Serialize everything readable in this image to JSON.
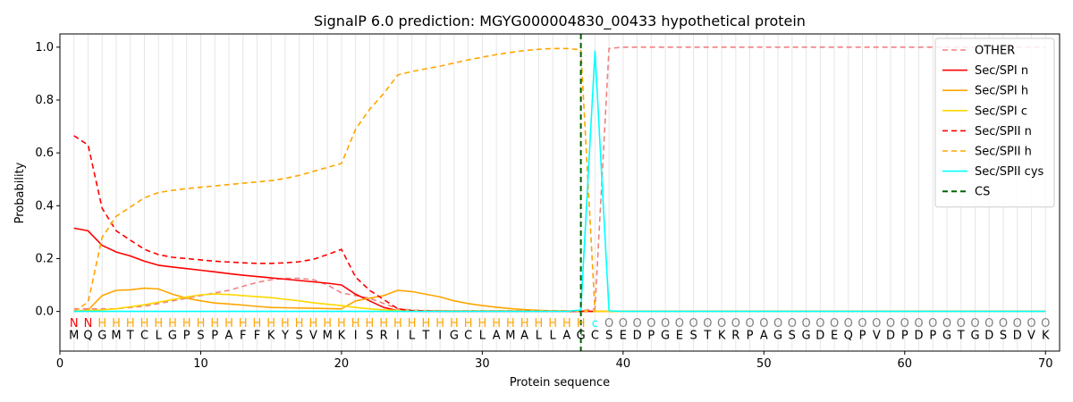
{
  "chart_data": {
    "type": "line",
    "title": "SignalP 6.0 prediction: MGYG000004830_00433 hypothetical protein",
    "xlabel": "Protein sequence",
    "ylabel": "Probability",
    "xlim": [
      0,
      71
    ],
    "ylim": [
      -0.15,
      1.05
    ],
    "x_ticks": [
      0,
      10,
      20,
      30,
      40,
      50,
      60,
      70
    ],
    "y_ticks": [
      0.0,
      0.2,
      0.4,
      0.6,
      0.8,
      1.0
    ],
    "x_tick_labels": [
      "0",
      "10",
      "20",
      "30",
      "40",
      "50",
      "60",
      "70"
    ],
    "y_tick_labels": [
      "0.0",
      "0.2",
      "0.4",
      "0.6",
      "0.8",
      "1.0"
    ],
    "grid": "vertical lines at each residue",
    "legend_position": "top-right",
    "sequence": [
      "M",
      "Q",
      "G",
      "M",
      "T",
      "C",
      "L",
      "G",
      "P",
      "S",
      "P",
      "A",
      "F",
      "F",
      "K",
      "Y",
      "S",
      "V",
      "M",
      "K",
      "I",
      "S",
      "R",
      "I",
      "L",
      "T",
      "I",
      "G",
      "C",
      "L",
      "A",
      "M",
      "A",
      "L",
      "L",
      "A",
      "G",
      "C",
      "S",
      "E",
      "D",
      "P",
      "G",
      "E",
      "S",
      "T",
      "K",
      "R",
      "P",
      "A",
      "G",
      "S",
      "G",
      "D",
      "E",
      "Q",
      "P",
      "V",
      "D",
      "P",
      "D",
      "P",
      "G",
      "T",
      "G",
      "D",
      "S",
      "D",
      "V",
      "K"
    ],
    "region_labels": [
      "N",
      "N",
      "H",
      "H",
      "H",
      "H",
      "H",
      "H",
      "H",
      "H",
      "H",
      "H",
      "H",
      "H",
      "H",
      "H",
      "H",
      "H",
      "H",
      "H",
      "H",
      "H",
      "H",
      "H",
      "H",
      "H",
      "H",
      "H",
      "H",
      "H",
      "H",
      "H",
      "H",
      "H",
      "H",
      "H",
      "H",
      "c",
      "O",
      "O",
      "O",
      "O",
      "O",
      "O",
      "O",
      "O",
      "O",
      "O",
      "O",
      "O",
      "O",
      "O",
      "O",
      "O",
      "O",
      "O",
      "O",
      "O",
      "O",
      "O",
      "O",
      "O",
      "O",
      "O",
      "O",
      "O",
      "O",
      "O",
      "O",
      "O"
    ],
    "region_colors": {
      "N": "#ff0000",
      "H": "#ffa500",
      "c": "#00ffff",
      "O": "#808080"
    },
    "cleavage_site": 37,
    "series": [
      {
        "name": "OTHER",
        "color": "#f08080",
        "dash": "dashed",
        "x_range": [
          1,
          70
        ],
        "values": [
          0.01,
          0.01,
          0.01,
          0.01,
          0.015,
          0.02,
          0.03,
          0.04,
          0.05,
          0.06,
          0.07,
          0.08,
          0.095,
          0.11,
          0.12,
          0.125,
          0.125,
          0.12,
          0.1,
          0.07,
          0.06,
          0.05,
          0.03,
          0.01,
          0.005,
          0.003,
          0.003,
          0.002,
          0.002,
          0.002,
          0.002,
          0.002,
          0.002,
          0.002,
          0.002,
          0.002,
          0.002,
          0.01,
          0.995,
          1.0,
          1.0,
          1.0,
          1.0,
          1.0,
          1.0,
          1.0,
          1.0,
          1.0,
          1.0,
          1.0,
          1.0,
          1.0,
          1.0,
          1.0,
          1.0,
          1.0,
          1.0,
          1.0,
          1.0,
          1.0,
          1.0,
          1.0,
          1.0,
          1.0,
          1.0,
          1.0,
          1.0,
          1.0,
          1.0,
          1.0
        ]
      },
      {
        "name": "Sec/SPI n",
        "color": "#ff0000",
        "dash": "solid",
        "x_range": [
          1,
          70
        ],
        "values": [
          0.315,
          0.305,
          0.25,
          0.225,
          0.21,
          0.19,
          0.175,
          0.168,
          0.162,
          0.156,
          0.15,
          0.143,
          0.137,
          0.132,
          0.127,
          0.122,
          0.117,
          0.112,
          0.107,
          0.1,
          0.065,
          0.04,
          0.015,
          0.003,
          0.001,
          0.0,
          0.0,
          0.0,
          0.0,
          0.0,
          0.0,
          0.0,
          0.0,
          0.0,
          0.0,
          0.0,
          0.0,
          0.0,
          0.0,
          0.0,
          0.0,
          0.0,
          0.0,
          0.0,
          0.0,
          0.0,
          0.0,
          0.0,
          0.0,
          0.0,
          0.0,
          0.0,
          0.0,
          0.0,
          0.0,
          0.0,
          0.0,
          0.0,
          0.0,
          0.0,
          0.0,
          0.0,
          0.0,
          0.0,
          0.0,
          0.0,
          0.0,
          0.0,
          0.0,
          0.0
        ]
      },
      {
        "name": "Sec/SPI h",
        "color": "#ffa500",
        "dash": "solid",
        "x_range": [
          1,
          70
        ],
        "values": [
          0.0,
          0.005,
          0.06,
          0.08,
          0.082,
          0.088,
          0.085,
          0.065,
          0.05,
          0.04,
          0.032,
          0.028,
          0.024,
          0.019,
          0.015,
          0.014,
          0.013,
          0.012,
          0.011,
          0.01,
          0.04,
          0.05,
          0.06,
          0.08,
          0.075,
          0.065,
          0.055,
          0.04,
          0.03,
          0.022,
          0.016,
          0.011,
          0.007,
          0.004,
          0.002,
          0.001,
          0.001,
          0.0,
          0.0,
          0.0,
          0.0,
          0.0,
          0.0,
          0.0,
          0.0,
          0.0,
          0.0,
          0.0,
          0.0,
          0.0,
          0.0,
          0.0,
          0.0,
          0.0,
          0.0,
          0.0,
          0.0,
          0.0,
          0.0,
          0.0,
          0.0,
          0.0,
          0.0,
          0.0,
          0.0,
          0.0,
          0.0,
          0.0,
          0.0,
          0.0
        ]
      },
      {
        "name": "Sec/SPI c",
        "color": "#ffd700",
        "dash": "solid",
        "x_range": [
          1,
          70
        ],
        "values": [
          0.0,
          0.003,
          0.006,
          0.01,
          0.018,
          0.025,
          0.035,
          0.045,
          0.055,
          0.063,
          0.066,
          0.064,
          0.06,
          0.056,
          0.052,
          0.046,
          0.04,
          0.033,
          0.027,
          0.022,
          0.015,
          0.01,
          0.006,
          0.004,
          0.003,
          0.002,
          0.002,
          0.002,
          0.002,
          0.002,
          0.002,
          0.002,
          0.002,
          0.002,
          0.002,
          0.002,
          0.002,
          0.0,
          0.0,
          0.0,
          0.0,
          0.0,
          0.0,
          0.0,
          0.0,
          0.0,
          0.0,
          0.0,
          0.0,
          0.0,
          0.0,
          0.0,
          0.0,
          0.0,
          0.0,
          0.0,
          0.0,
          0.0,
          0.0,
          0.0,
          0.0,
          0.0,
          0.0,
          0.0,
          0.0,
          0.0,
          0.0,
          0.0,
          0.0,
          0.0
        ]
      },
      {
        "name": "Sec/SPII n",
        "color": "#ff0000",
        "dash": "dashed",
        "x_range": [
          1,
          38
        ],
        "values": [
          0.665,
          0.63,
          0.39,
          0.305,
          0.27,
          0.235,
          0.215,
          0.205,
          0.2,
          0.195,
          0.19,
          0.187,
          0.184,
          0.182,
          0.182,
          0.184,
          0.188,
          0.197,
          0.215,
          0.235,
          0.13,
          0.08,
          0.045,
          0.01,
          0.003,
          0.002,
          0.001,
          0.001,
          0.001,
          0.001,
          0.001,
          0.001,
          0.001,
          0.001,
          0.001,
          0.001,
          0.001,
          0.0
        ]
      },
      {
        "name": "Sec/SPII h",
        "color": "#ffa500",
        "dash": "dashed",
        "x_range": [
          1,
          38
        ],
        "values": [
          0.0,
          0.035,
          0.28,
          0.36,
          0.395,
          0.43,
          0.45,
          0.458,
          0.465,
          0.47,
          0.475,
          0.48,
          0.485,
          0.49,
          0.495,
          0.503,
          0.515,
          0.53,
          0.545,
          0.56,
          0.69,
          0.765,
          0.825,
          0.895,
          0.908,
          0.918,
          0.928,
          0.94,
          0.952,
          0.962,
          0.972,
          0.98,
          0.987,
          0.992,
          0.995,
          0.995,
          0.99,
          0.0
        ]
      },
      {
        "name": "Sec/SPII cys",
        "color": "#00ffff",
        "dash": "solid",
        "x_range": [
          1,
          70
        ],
        "values": [
          0.0,
          0.0,
          0.0,
          0.0,
          0.0,
          0.0,
          0.0,
          0.0,
          0.0,
          0.0,
          0.0,
          0.0,
          0.0,
          0.0,
          0.0,
          0.0,
          0.0,
          0.0,
          0.0,
          0.0,
          0.0,
          0.0,
          0.0,
          0.0,
          0.0,
          0.0,
          0.0,
          0.0,
          0.0,
          0.0,
          0.0,
          0.0,
          0.0,
          0.0,
          0.0,
          0.0,
          0.005,
          0.985,
          0.002,
          0.0,
          0.0,
          0.0,
          0.0,
          0.0,
          0.0,
          0.0,
          0.0,
          0.0,
          0.0,
          0.0,
          0.0,
          0.0,
          0.0,
          0.0,
          0.0,
          0.0,
          0.0,
          0.0,
          0.0,
          0.0,
          0.0,
          0.0,
          0.0,
          0.0,
          0.0,
          0.0,
          0.0,
          0.0,
          0.0,
          0.0
        ]
      },
      {
        "name": "CS",
        "color": "#006400",
        "dash": "dashed",
        "vertical_at": 37
      }
    ]
  }
}
